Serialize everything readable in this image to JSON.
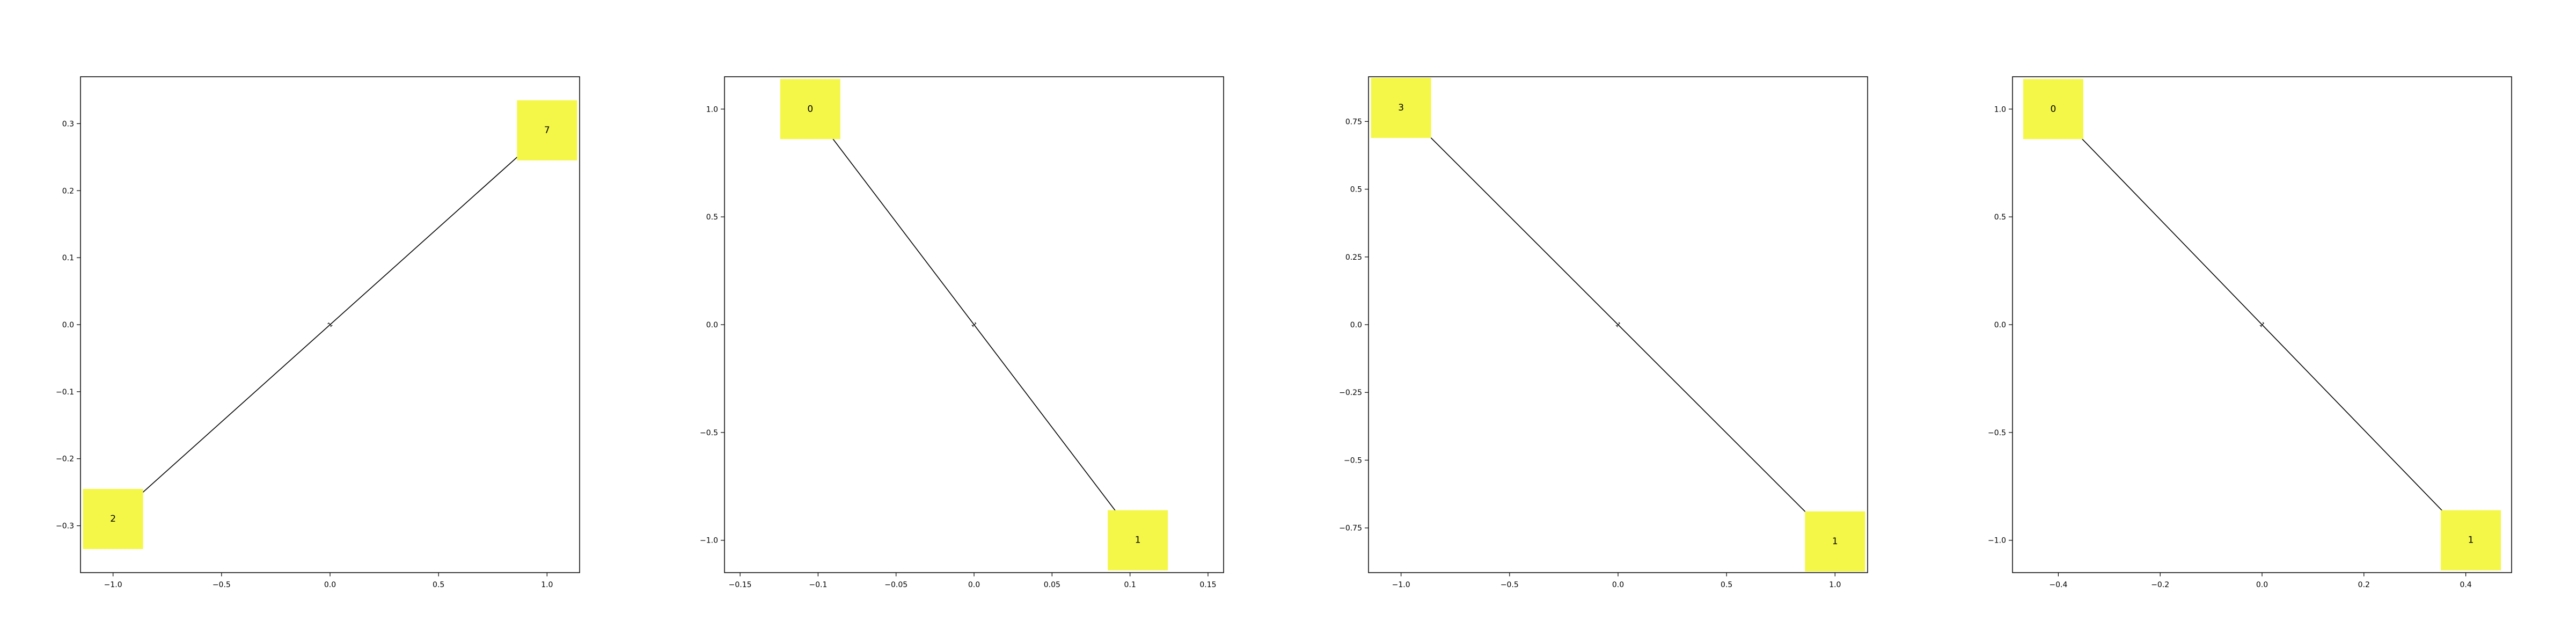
{
  "chart_data": [
    {
      "type": "network",
      "xlim": [
        -1.15,
        1.15
      ],
      "ylim": [
        -0.37,
        0.37
      ],
      "xticks": [
        -1.0,
        -0.5,
        0.0,
        0.5,
        1.0
      ],
      "yticks": [
        -0.3,
        -0.2,
        -0.1,
        0.0,
        0.1,
        0.2,
        0.3
      ],
      "nodes": [
        {
          "label": "2",
          "x": -1.0,
          "y": -0.29
        },
        {
          "label": "7",
          "x": 1.0,
          "y": 0.29
        }
      ],
      "edges": [
        {
          "from": "2",
          "to": "7",
          "label": "1"
        }
      ]
    },
    {
      "type": "network",
      "xlim": [
        -0.16,
        0.16
      ],
      "ylim": [
        -1.15,
        1.15
      ],
      "xticks": [
        -0.15,
        -0.1,
        -0.05,
        0.0,
        0.05,
        0.1,
        0.15
      ],
      "yticks": [
        -1.0,
        -0.5,
        0.0,
        0.5,
        1.0
      ],
      "nodes": [
        {
          "label": "0",
          "x": -0.105,
          "y": 1.0
        },
        {
          "label": "1",
          "x": 0.105,
          "y": -1.0
        }
      ],
      "edges": [
        {
          "from": "0",
          "to": "1",
          "label": "1"
        }
      ]
    },
    {
      "type": "network",
      "xlim": [
        -1.15,
        1.15
      ],
      "ylim": [
        -0.915,
        0.915
      ],
      "xticks": [
        -1.0,
        -0.5,
        0.0,
        0.5,
        1.0
      ],
      "yticks": [
        -0.75,
        -0.5,
        -0.25,
        0.0,
        0.25,
        0.5,
        0.75
      ],
      "nodes": [
        {
          "label": "3",
          "x": -1.0,
          "y": 0.8
        },
        {
          "label": "1",
          "x": 1.0,
          "y": -0.8
        }
      ],
      "edges": [
        {
          "from": "3",
          "to": "1",
          "label": "1"
        }
      ]
    },
    {
      "type": "network",
      "xlim": [
        -0.49,
        0.49
      ],
      "ylim": [
        -1.15,
        1.15
      ],
      "xticks": [
        -0.4,
        -0.2,
        0.0,
        0.2,
        0.4
      ],
      "yticks": [
        -1.0,
        -0.5,
        0.0,
        0.5,
        1.0
      ],
      "nodes": [
        {
          "label": "0",
          "x": -0.41,
          "y": 1.0
        },
        {
          "label": "1",
          "x": 0.41,
          "y": -1.0
        }
      ],
      "edges": [
        {
          "from": "0",
          "to": "1",
          "label": "1"
        }
      ]
    }
  ],
  "colors": {
    "node_fill": "#f4f748",
    "edge": "#000000",
    "axes": "#000000",
    "background": "#ffffff"
  }
}
